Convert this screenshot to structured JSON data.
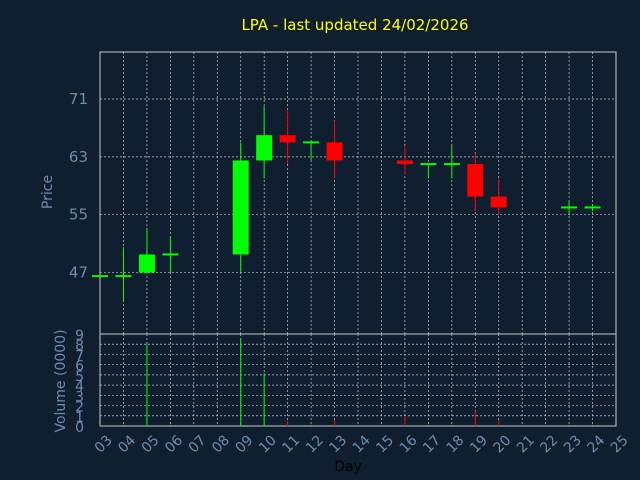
{
  "chart_data": {
    "type": "candlestick",
    "title": "LPA - last updated 24/02/2026",
    "xlabel": "Day",
    "ylabel_price": "Price",
    "ylabel_volume": "Volume (0000)",
    "x_ticks": [
      "03",
      "04",
      "05",
      "06",
      "07",
      "08",
      "09",
      "10",
      "11",
      "12",
      "13",
      "14",
      "15",
      "16",
      "17",
      "18",
      "19",
      "20",
      "21",
      "22",
      "23",
      "24",
      "25"
    ],
    "price_ticks": [
      47,
      55,
      63,
      71
    ],
    "price_ylim": [
      38.5,
      77.5
    ],
    "volume_ticks": [
      0,
      1,
      2,
      3,
      4,
      5,
      6,
      7,
      8,
      9
    ],
    "volume_ylim": [
      0,
      9
    ],
    "grid": true,
    "colors": {
      "background": "#0f1f30",
      "plot_background": "#0f1f30",
      "grid": "#c8c8c8",
      "frame": "#c8c8c8",
      "axis_text": "#6a8caf",
      "title": "#ffff00",
      "up": "#00ff00",
      "down": "#ff0000"
    },
    "candles": [
      {
        "day": "03",
        "open": 46.5,
        "high": 46.5,
        "low": 46.5,
        "close": 46.5,
        "volume": 0.1
      },
      {
        "day": "04",
        "open": 46.5,
        "high": 50.5,
        "low": 43.0,
        "close": 46.5,
        "volume": 0.1
      },
      {
        "day": "05",
        "open": 47.0,
        "high": 53.0,
        "low": 47.0,
        "close": 49.5,
        "volume": 8.0
      },
      {
        "day": "06",
        "open": 49.5,
        "high": 52.0,
        "low": 47.0,
        "close": 49.5,
        "volume": 0.1
      },
      {
        "day": "09",
        "open": 49.5,
        "high": 65.0,
        "low": 47.0,
        "close": 62.5,
        "volume": 8.6
      },
      {
        "day": "10",
        "open": 62.5,
        "high": 70.0,
        "low": 60.0,
        "close": 66.0,
        "volume": 5.2
      },
      {
        "day": "11",
        "open": 66.0,
        "high": 69.5,
        "low": 62.0,
        "close": 65.0,
        "volume": 0.5
      },
      {
        "day": "12",
        "open": 65.0,
        "high": 65.0,
        "low": 62.5,
        "close": 65.0,
        "volume": 0.1
      },
      {
        "day": "13",
        "open": 65.0,
        "high": 68.0,
        "low": 60.0,
        "close": 62.5,
        "volume": 0.6
      },
      {
        "day": "16",
        "open": 62.5,
        "high": 64.5,
        "low": 60.5,
        "close": 62.0,
        "volume": 0.9
      },
      {
        "day": "17",
        "open": 62.0,
        "high": 62.0,
        "low": 60.0,
        "close": 62.0,
        "volume": 0.1
      },
      {
        "day": "18",
        "open": 62.0,
        "high": 64.5,
        "low": 60.0,
        "close": 62.0,
        "volume": 0.1
      },
      {
        "day": "19",
        "open": 62.0,
        "high": 63.5,
        "low": 55.5,
        "close": 57.5,
        "volume": 1.5
      },
      {
        "day": "20",
        "open": 57.5,
        "high": 60.0,
        "low": 55.0,
        "close": 56.0,
        "volume": 0.6
      },
      {
        "day": "23",
        "open": 56.0,
        "high": 57.0,
        "low": 55.0,
        "close": 56.0,
        "volume": 0.1
      },
      {
        "day": "24",
        "open": 56.0,
        "high": 56.5,
        "low": 55.5,
        "close": 56.0,
        "volume": 0.1
      }
    ]
  }
}
